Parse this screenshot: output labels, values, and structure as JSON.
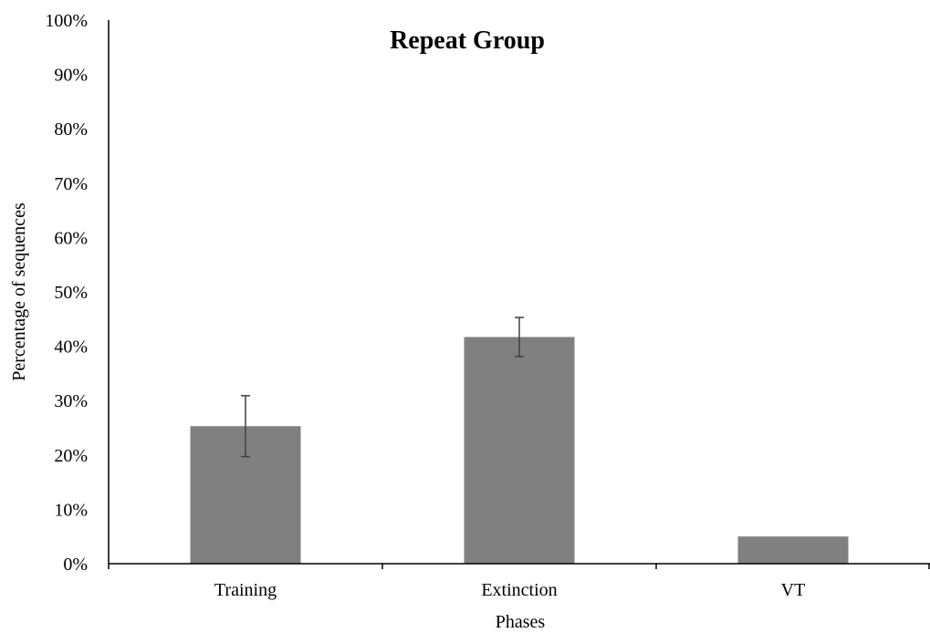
{
  "chart_data": {
    "type": "bar",
    "title": "Repeat Group",
    "xlabel": "Phases",
    "ylabel": "Percentage of sequences",
    "categories": [
      "Training",
      "Extinction",
      "VT"
    ],
    "values": [
      25.3,
      41.7,
      5.0
    ],
    "error_plus_minus": [
      5.6,
      3.6,
      0
    ],
    "ylim": [
      0,
      100
    ],
    "yticks": [
      0,
      10,
      20,
      30,
      40,
      50,
      60,
      70,
      80,
      90,
      100
    ],
    "ytick_labels": [
      "0%",
      "10%",
      "20%",
      "30%",
      "40%",
      "50%",
      "60%",
      "70%",
      "80%",
      "90%",
      "100%"
    ],
    "grid": false,
    "legend": "none",
    "colors": {
      "bar": "#808080",
      "error_bar": "#404040",
      "axis": "#000000"
    }
  }
}
